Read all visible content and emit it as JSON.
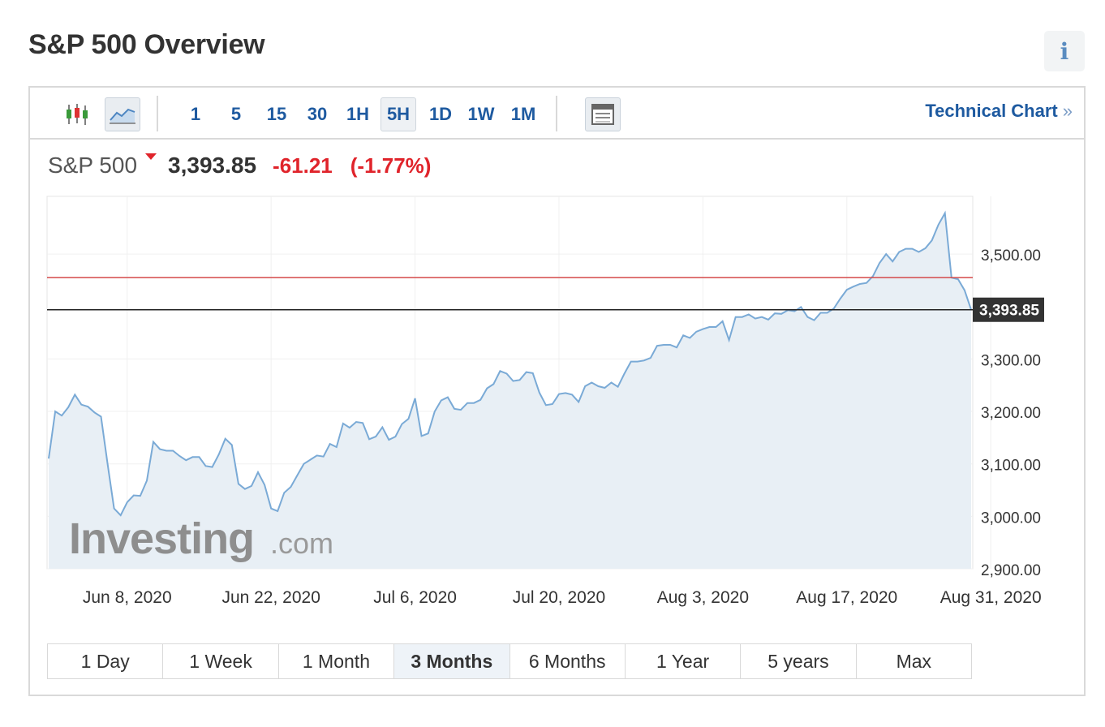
{
  "header": {
    "title": "S&P 500 Overview",
    "info_glyph": "i"
  },
  "toolbar": {
    "intervals": [
      "1",
      "5",
      "15",
      "30",
      "1H",
      "5H",
      "1D",
      "1W",
      "1M"
    ],
    "active_interval": "5H",
    "technical_chart_label": "Technical Chart",
    "technical_chart_arrows": "»"
  },
  "quote": {
    "name": "S&P 500",
    "price": "3,393.85",
    "change": "-61.21",
    "change_pct": "(-1.77%)",
    "direction": "down"
  },
  "ranges": [
    "1 Day",
    "1 Week",
    "1 Month",
    "3 Months",
    "6 Months",
    "1 Year",
    "5 years",
    "Max"
  ],
  "active_range": "3 Months",
  "watermark": {
    "main": "Investing",
    "suffix": ".com"
  },
  "colors": {
    "line": "#7aaad6",
    "area": "#e8eff5",
    "down": "#e0242b",
    "link": "#1e5aa0",
    "ref_line": "#d44a4a"
  },
  "chart_data": {
    "type": "area",
    "title": "",
    "xlabel": "",
    "ylabel": "",
    "ylim": [
      2900,
      3610
    ],
    "yticks": [
      3500,
      3300,
      3200,
      3100,
      3000,
      2900
    ],
    "ytick_labels": [
      "3,500.00",
      "3,300.00",
      "3,200.00",
      "3,100.00",
      "3,000.00",
      "2,900.00"
    ],
    "xtick_labels": [
      "Jun 8, 2020",
      "Jun 22, 2020",
      "Jul 6, 2020",
      "Jul 20, 2020",
      "Aug 3, 2020",
      "Aug 17, 2020",
      "Aug 31, 2020"
    ],
    "xtick_index": [
      12,
      34,
      56,
      78,
      100,
      122,
      144
    ],
    "last_price": 3393.85,
    "last_price_label": "3,393.85",
    "previous_close": 3455.06,
    "grid": true,
    "values": [
      3110,
      3200,
      3192,
      3208,
      3232,
      3213,
      3209,
      3198,
      3190,
      3100,
      3015,
      3002,
      3027,
      3040,
      3039,
      3068,
      3142,
      3128,
      3125,
      3125,
      3115,
      3107,
      3113,
      3113,
      3096,
      3094,
      3118,
      3148,
      3136,
      3062,
      3052,
      3058,
      3084,
      3060,
      3015,
      3010,
      3045,
      3056,
      3078,
      3100,
      3108,
      3116,
      3114,
      3138,
      3132,
      3177,
      3169,
      3180,
      3178,
      3147,
      3152,
      3170,
      3146,
      3152,
      3176,
      3186,
      3225,
      3153,
      3158,
      3200,
      3221,
      3227,
      3205,
      3203,
      3216,
      3216,
      3222,
      3244,
      3252,
      3277,
      3272,
      3258,
      3260,
      3275,
      3273,
      3236,
      3212,
      3214,
      3233,
      3235,
      3232,
      3218,
      3248,
      3255,
      3248,
      3245,
      3255,
      3247,
      3272,
      3295,
      3295,
      3297,
      3302,
      3325,
      3327,
      3327,
      3322,
      3345,
      3340,
      3352,
      3357,
      3361,
      3361,
      3372,
      3336,
      3380,
      3380,
      3385,
      3377,
      3380,
      3375,
      3387,
      3386,
      3393,
      3391,
      3399,
      3380,
      3374,
      3388,
      3388,
      3396,
      3415,
      3432,
      3438,
      3443,
      3445,
      3458,
      3483,
      3500,
      3486,
      3504,
      3510,
      3510,
      3504,
      3511,
      3526,
      3556,
      3578,
      3455,
      3452,
      3431,
      3393.85
    ]
  }
}
